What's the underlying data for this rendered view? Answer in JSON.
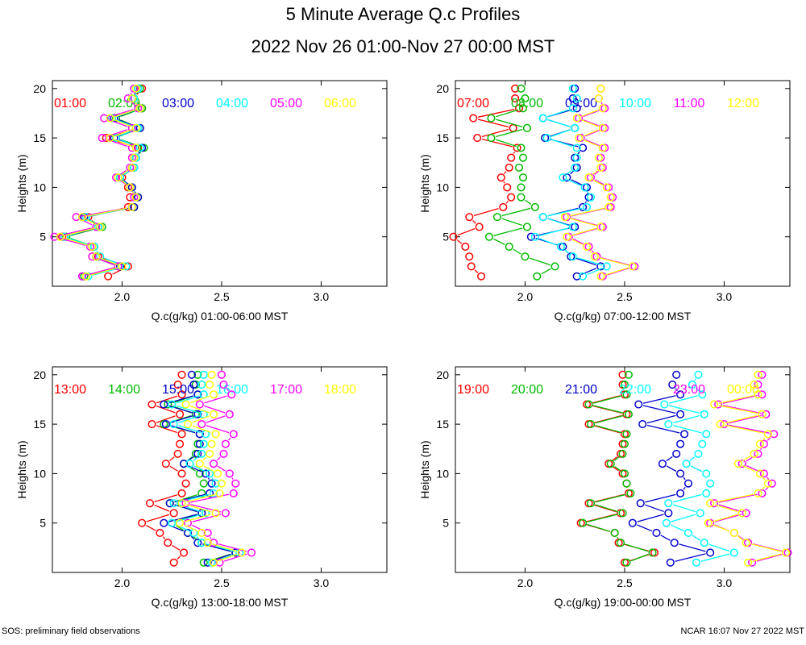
{
  "page": {
    "title": "5 Minute Average Q.c Profiles",
    "subtitle": "2022 Nov 26 01:00-Nov 27 00:00 MST",
    "footer_left": "SOS: preliminary field observations",
    "footer_right": "NCAR 16:07 Nov 27 2022 MST"
  },
  "chart_data": [
    {
      "type": "line",
      "xlabel": "Q.c(g/kg) 01:00-06:00 MST",
      "ylabel": "Heights (m)",
      "xlim": [
        1.65,
        3.33
      ],
      "ylim": [
        0,
        20.8
      ],
      "xticks": [
        "2.0",
        "2.5",
        "3.0"
      ],
      "yticks": [
        "5",
        "10",
        "15",
        "20"
      ],
      "heights": [
        1,
        2,
        3,
        4,
        5,
        6,
        7,
        8,
        9,
        10,
        11,
        12,
        13,
        14,
        15,
        16,
        17,
        18,
        19,
        20
      ],
      "series": [
        {
          "name": "01:00",
          "color": "#ff0000",
          "values": [
            1.93,
            2.03,
            1.88,
            1.86,
            1.7,
            1.88,
            1.83,
            2.03,
            2.04,
            2.03,
            2.0,
            2.05,
            2.06,
            2.08,
            1.92,
            2.08,
            1.95,
            2.1,
            2.06,
            2.1
          ]
        },
        {
          "name": "02:00",
          "color": "#00bb00",
          "values": [
            1.81,
            1.99,
            1.87,
            1.86,
            1.72,
            1.9,
            1.81,
            2.06,
            2.08,
            2.05,
            1.99,
            2.06,
            2.07,
            2.11,
            1.97,
            2.09,
            1.97,
            2.1,
            2.06,
            2.09
          ]
        },
        {
          "name": "03:00",
          "color": "#0000cc",
          "values": [
            1.8,
            1.99,
            1.87,
            1.85,
            1.71,
            1.89,
            1.81,
            2.06,
            2.08,
            2.05,
            1.99,
            2.06,
            2.07,
            2.1,
            1.96,
            2.09,
            1.96,
            2.09,
            2.05,
            2.08
          ]
        },
        {
          "name": "04:00",
          "color": "#00ffff",
          "values": [
            1.83,
            2.02,
            1.89,
            1.86,
            1.71,
            1.88,
            1.82,
            2.05,
            2.07,
            2.04,
            1.99,
            2.06,
            2.07,
            2.09,
            1.97,
            2.08,
            1.95,
            2.09,
            2.06,
            2.08
          ]
        },
        {
          "name": "05:00",
          "color": "#ff00ff",
          "values": [
            1.8,
            1.98,
            1.85,
            1.84,
            1.66,
            1.87,
            1.77,
            2.05,
            2.06,
            2.04,
            1.97,
            2.04,
            2.05,
            2.05,
            1.9,
            2.05,
            1.91,
            2.08,
            2.03,
            2.06
          ]
        },
        {
          "name": "06:00",
          "color": "#ffff00",
          "values": [
            1.82,
            2.0,
            1.87,
            1.85,
            1.69,
            1.89,
            1.8,
            2.05,
            2.07,
            2.04,
            1.98,
            2.05,
            2.06,
            2.07,
            1.94,
            2.07,
            1.94,
            2.09,
            2.05,
            2.07
          ]
        }
      ]
    },
    {
      "type": "line",
      "xlabel": "Q.c(g/kg) 07:00-12:00 MST",
      "ylabel": "Heights (m)",
      "xlim": [
        1.65,
        3.33
      ],
      "ylim": [
        0,
        20.8
      ],
      "xticks": [
        "2.0",
        "2.5",
        "3.0"
      ],
      "yticks": [
        "5",
        "10",
        "15",
        "20"
      ],
      "heights": [
        1,
        2,
        3,
        4,
        5,
        6,
        7,
        8,
        9,
        10,
        11,
        12,
        13,
        14,
        15,
        16,
        17,
        18,
        19,
        20
      ],
      "series": [
        {
          "name": "07:00",
          "color": "#ff0000",
          "values": [
            1.78,
            1.73,
            1.72,
            1.7,
            1.64,
            1.77,
            1.72,
            1.89,
            1.93,
            1.91,
            1.88,
            1.92,
            1.93,
            1.96,
            1.76,
            1.94,
            1.74,
            1.97,
            1.95,
            1.95
          ]
        },
        {
          "name": "08:00",
          "color": "#00bb00",
          "values": [
            2.06,
            2.15,
            2.0,
            1.92,
            1.82,
            2.01,
            1.86,
            2.05,
            1.98,
            1.98,
            1.99,
            1.97,
            1.99,
            1.98,
            1.83,
            2.01,
            1.83,
            1.99,
            2.0,
            1.98
          ]
        },
        {
          "name": "09:00",
          "color": "#0000cc",
          "values": [
            2.26,
            2.38,
            2.23,
            2.19,
            2.03,
            2.25,
            2.09,
            2.29,
            2.32,
            2.31,
            2.21,
            2.26,
            2.25,
            2.29,
            2.1,
            2.25,
            2.09,
            2.26,
            2.24,
            2.25
          ]
        },
        {
          "name": "10:00",
          "color": "#00ffff",
          "values": [
            2.29,
            2.41,
            2.24,
            2.18,
            2.05,
            2.24,
            2.09,
            2.31,
            2.33,
            2.3,
            2.19,
            2.25,
            2.26,
            2.26,
            2.11,
            2.25,
            2.09,
            2.24,
            2.26,
            2.24
          ]
        },
        {
          "name": "11:00",
          "color": "#ff00ff",
          "values": [
            2.39,
            2.55,
            2.36,
            2.32,
            2.22,
            2.39,
            2.21,
            2.43,
            2.44,
            2.42,
            2.33,
            2.39,
            2.38,
            2.4,
            2.28,
            2.4,
            2.27,
            2.4,
            2.37,
            2.38
          ]
        },
        {
          "name": "12:00",
          "color": "#ffff00",
          "values": [
            2.38,
            2.54,
            2.35,
            2.31,
            2.21,
            2.38,
            2.2,
            2.42,
            2.43,
            2.41,
            2.32,
            2.38,
            2.37,
            2.39,
            2.27,
            2.39,
            2.26,
            2.39,
            2.37,
            2.38
          ]
        }
      ]
    },
    {
      "type": "line",
      "xlabel": "Q.c(g/kg) 13:00-18:00 MST",
      "ylabel": "Heights (m)",
      "xlim": [
        1.65,
        3.33
      ],
      "ylim": [
        0,
        20.8
      ],
      "xticks": [
        "2.0",
        "2.5",
        "3.0"
      ],
      "yticks": [
        "5",
        "10",
        "15",
        "20"
      ],
      "heights": [
        1,
        2,
        3,
        4,
        5,
        6,
        7,
        8,
        9,
        10,
        11,
        12,
        13,
        14,
        15,
        16,
        17,
        18,
        19,
        20
      ],
      "series": [
        {
          "name": "13:00",
          "color": "#ff0000",
          "values": [
            2.26,
            2.31,
            2.23,
            2.19,
            2.1,
            2.26,
            2.14,
            2.3,
            2.32,
            2.3,
            2.22,
            2.28,
            2.29,
            2.3,
            2.15,
            2.29,
            2.15,
            2.3,
            2.28,
            2.3
          ]
        },
        {
          "name": "14:00",
          "color": "#00bb00",
          "values": [
            2.41,
            2.57,
            2.4,
            2.33,
            2.25,
            2.4,
            2.24,
            2.4,
            2.41,
            2.39,
            2.31,
            2.37,
            2.38,
            2.39,
            2.21,
            2.37,
            2.23,
            2.38,
            2.37,
            2.38
          ]
        },
        {
          "name": "15:00",
          "color": "#0000cc",
          "values": [
            2.43,
            2.57,
            2.38,
            2.33,
            2.21,
            2.4,
            2.24,
            2.44,
            2.45,
            2.42,
            2.31,
            2.38,
            2.39,
            2.39,
            2.22,
            2.38,
            2.21,
            2.38,
            2.36,
            2.35
          ]
        },
        {
          "name": "16:00",
          "color": "#00ffff",
          "values": [
            2.45,
            2.59,
            2.4,
            2.36,
            2.25,
            2.42,
            2.26,
            2.46,
            2.47,
            2.44,
            2.34,
            2.4,
            2.41,
            2.42,
            2.26,
            2.41,
            2.25,
            2.41,
            2.4,
            2.41
          ]
        },
        {
          "name": "17:00",
          "color": "#ff00ff",
          "values": [
            2.49,
            2.65,
            2.46,
            2.43,
            2.33,
            2.52,
            2.32,
            2.56,
            2.57,
            2.54,
            2.46,
            2.51,
            2.52,
            2.56,
            2.4,
            2.54,
            2.39,
            2.55,
            2.51,
            2.5
          ]
        },
        {
          "name": "18:00",
          "color": "#ffff00",
          "values": [
            2.46,
            2.6,
            2.43,
            2.4,
            2.29,
            2.47,
            2.3,
            2.49,
            2.5,
            2.48,
            2.39,
            2.44,
            2.45,
            2.47,
            2.33,
            2.46,
            2.32,
            2.46,
            2.44,
            2.45
          ]
        }
      ]
    },
    {
      "type": "line",
      "xlabel": "Q.c(g/kg) 19:00-00:00 MST",
      "ylabel": "Heights (m)",
      "xlim": [
        1.65,
        3.33
      ],
      "ylim": [
        0,
        20.8
      ],
      "xticks": [
        "2.0",
        "2.5",
        "3.0"
      ],
      "yticks": [
        "5",
        "10",
        "15",
        "20"
      ],
      "heights": [
        1,
        2,
        3,
        4,
        5,
        6,
        7,
        8,
        9,
        10,
        11,
        12,
        13,
        14,
        15,
        16,
        17,
        18,
        19,
        20
      ],
      "series": [
        {
          "name": "19:00",
          "color": "#ff0000",
          "values": [
            2.5,
            2.65,
            2.47,
            2.45,
            2.28,
            2.48,
            2.32,
            2.52,
            2.51,
            2.49,
            2.42,
            2.48,
            2.49,
            2.5,
            2.32,
            2.51,
            2.31,
            2.5,
            2.49,
            2.49
          ]
        },
        {
          "name": "20:00",
          "color": "#00bb00",
          "values": [
            2.51,
            2.64,
            2.48,
            2.45,
            2.29,
            2.49,
            2.33,
            2.53,
            2.51,
            2.5,
            2.43,
            2.49,
            2.5,
            2.51,
            2.33,
            2.52,
            2.32,
            2.51,
            2.5,
            2.52
          ]
        },
        {
          "name": "21:00",
          "color": "#0000cc",
          "values": [
            2.73,
            2.93,
            2.75,
            2.66,
            2.54,
            2.72,
            2.58,
            2.78,
            2.82,
            2.78,
            2.69,
            2.76,
            2.78,
            2.8,
            2.59,
            2.78,
            2.57,
            2.78,
            2.74,
            2.76
          ]
        },
        {
          "name": "22:00",
          "color": "#00ffff",
          "values": [
            2.86,
            3.05,
            2.9,
            2.82,
            2.71,
            2.88,
            2.72,
            2.91,
            2.93,
            2.91,
            2.81,
            2.87,
            2.89,
            2.91,
            2.72,
            2.9,
            2.7,
            2.89,
            2.84,
            2.87
          ]
        },
        {
          "name": "23:00",
          "color": "#ff00ff",
          "values": [
            3.14,
            3.32,
            3.12,
            3.05,
            2.93,
            3.11,
            2.95,
            3.19,
            3.24,
            3.2,
            3.09,
            3.17,
            3.2,
            3.25,
            3.0,
            3.21,
            2.97,
            3.19,
            3.17,
            3.19
          ]
        },
        {
          "name": "00:00",
          "color": "#ffff00",
          "values": [
            3.12,
            3.31,
            3.11,
            3.05,
            2.92,
            3.09,
            2.93,
            3.17,
            3.22,
            3.18,
            3.07,
            3.15,
            3.18,
            3.22,
            2.98,
            3.19,
            2.95,
            3.17,
            3.15,
            3.17
          ]
        }
      ]
    }
  ]
}
